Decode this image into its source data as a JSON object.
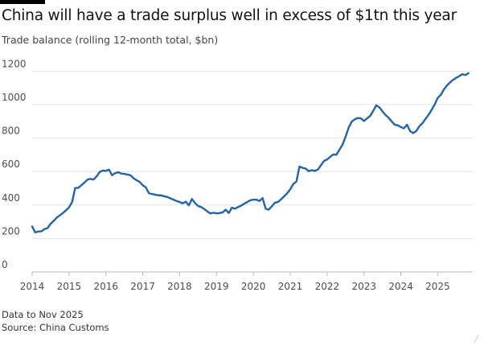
{
  "header": {
    "title": "China will have a trade surplus well in excess of $1tn this year",
    "subtitle": "Trade balance (rolling 12-month total, $bn)"
  },
  "footer": {
    "note": "Data to Nov 2025",
    "source": "Source: China Customs"
  },
  "colors": {
    "line": "#2463a8",
    "grid": "#e2e2e2",
    "baseline": "#b9b9b9",
    "tick_text": "#4d4d4d"
  },
  "chart_data": {
    "type": "line",
    "title": "China will have a trade surplus well in excess of $1tn this year",
    "subtitle": "Trade balance (rolling 12-month total, $bn)",
    "xlabel": "",
    "ylabel": "",
    "grid": true,
    "xlim": [
      2014.0,
      2025.95
    ],
    "ylim": [
      0,
      1250
    ],
    "x_ticks": [
      2014,
      2015,
      2016,
      2017,
      2018,
      2019,
      2020,
      2021,
      2022,
      2023,
      2024,
      2025
    ],
    "y_ticks": [
      0,
      200,
      400,
      600,
      800,
      1000,
      1200
    ],
    "series": [
      {
        "x": [
          "2014-01",
          "2014-02",
          "2014-03",
          "2014-04",
          "2014-05",
          "2014-06",
          "2014-07",
          "2014-08",
          "2014-09",
          "2014-10",
          "2014-11",
          "2014-12",
          "2015-01",
          "2015-02",
          "2015-03",
          "2015-04",
          "2015-05",
          "2015-06",
          "2015-07",
          "2015-08",
          "2015-09",
          "2015-10",
          "2015-11",
          "2015-12",
          "2016-01",
          "2016-02",
          "2016-03",
          "2016-04",
          "2016-05",
          "2016-06",
          "2016-07",
          "2016-08",
          "2016-09",
          "2016-10",
          "2016-11",
          "2016-12",
          "2017-01",
          "2017-02",
          "2017-03",
          "2017-04",
          "2017-05",
          "2017-06",
          "2017-07",
          "2017-08",
          "2017-09",
          "2017-10",
          "2017-11",
          "2017-12",
          "2018-01",
          "2018-02",
          "2018-03",
          "2018-04",
          "2018-05",
          "2018-06",
          "2018-07",
          "2018-08",
          "2018-09",
          "2018-10",
          "2018-11",
          "2018-12",
          "2019-01",
          "2019-02",
          "2019-03",
          "2019-04",
          "2019-05",
          "2019-06",
          "2019-07",
          "2019-08",
          "2019-09",
          "2019-10",
          "2019-11",
          "2019-12",
          "2020-01",
          "2020-02",
          "2020-03",
          "2020-04",
          "2020-05",
          "2020-06",
          "2020-07",
          "2020-08",
          "2020-09",
          "2020-10",
          "2020-11",
          "2020-12",
          "2021-01",
          "2021-02",
          "2021-03",
          "2021-04",
          "2021-05",
          "2021-06",
          "2021-07",
          "2021-08",
          "2021-09",
          "2021-10",
          "2021-11",
          "2021-12",
          "2022-01",
          "2022-02",
          "2022-03",
          "2022-04",
          "2022-05",
          "2022-06",
          "2022-07",
          "2022-08",
          "2022-09",
          "2022-10",
          "2022-11",
          "2022-12",
          "2023-01",
          "2023-02",
          "2023-03",
          "2023-04",
          "2023-05",
          "2023-06",
          "2023-07",
          "2023-08",
          "2023-09",
          "2023-10",
          "2023-11",
          "2023-12",
          "2024-01",
          "2024-02",
          "2024-03",
          "2024-04",
          "2024-05",
          "2024-06",
          "2024-07",
          "2024-08",
          "2024-09",
          "2024-10",
          "2024-11",
          "2024-12",
          "2025-01",
          "2025-02",
          "2025-03",
          "2025-04",
          "2025-05",
          "2025-06",
          "2025-07",
          "2025-08",
          "2025-09",
          "2025-10",
          "2025-11"
        ],
        "values": [
          272,
          236,
          242,
          243,
          256,
          262,
          288,
          305,
          325,
          338,
          352,
          368,
          386,
          418,
          502,
          502,
          518,
          534,
          552,
          556,
          552,
          572,
          598,
          606,
          604,
          612,
          578,
          590,
          596,
          588,
          586,
          582,
          578,
          560,
          548,
          538,
          518,
          506,
          470,
          466,
          462,
          458,
          458,
          452,
          448,
          440,
          432,
          424,
          418,
          410,
          420,
          398,
          436,
          412,
          394,
          388,
          376,
          362,
          350,
          354,
          350,
          352,
          356,
          372,
          352,
          384,
          378,
          388,
          396,
          408,
          418,
          428,
          432,
          432,
          424,
          442,
          378,
          372,
          392,
          414,
          418,
          434,
          452,
          470,
          494,
          526,
          540,
          630,
          622,
          618,
          602,
          608,
          604,
          612,
          638,
          664,
          672,
          688,
          702,
          700,
          730,
          760,
          808,
          862,
          898,
          912,
          920,
          918,
          902,
          918,
          932,
          962,
          996,
          984,
          960,
          938,
          922,
          900,
          880,
          876,
          866,
          858,
          880,
          842,
          830,
          842,
          870,
          888,
          914,
          938,
          968,
          1000,
          1040,
          1058,
          1090,
          1114,
          1132,
          1148,
          1160,
          1170,
          1182,
          1176,
          1188
        ]
      }
    ]
  }
}
